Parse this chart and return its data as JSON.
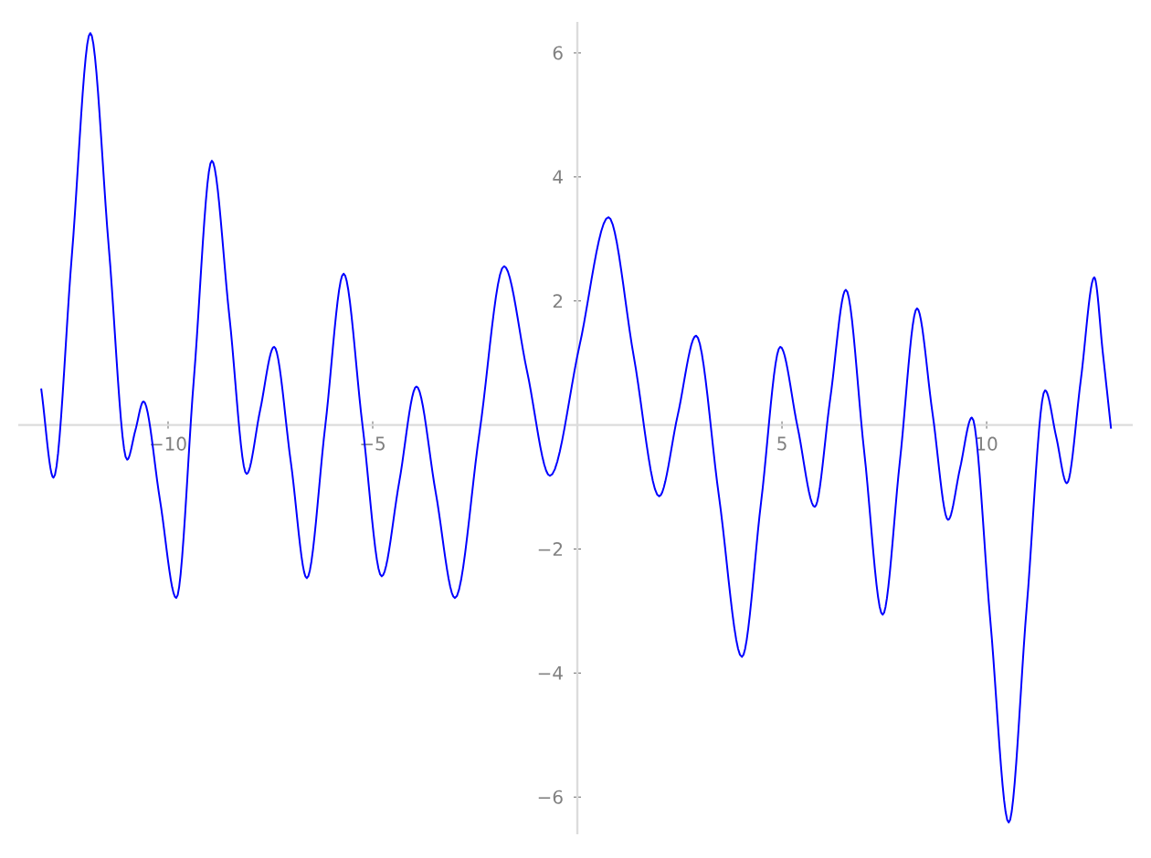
{
  "chart_data": {
    "type": "line",
    "x": [
      -13.1,
      -12.8,
      -12.35,
      -11.9,
      -11.45,
      -11.0,
      -10.8,
      -10.6,
      -10.2,
      -9.8,
      -9.37,
      -8.93,
      -8.5,
      -8.08,
      -7.75,
      -7.41,
      -7.0,
      -6.61,
      -6.16,
      -5.71,
      -5.25,
      -4.78,
      -4.35,
      -3.93,
      -3.46,
      -2.99,
      -2.39,
      -1.79,
      -1.23,
      -0.67,
      0.05,
      0.76,
      1.38,
      2.0,
      2.45,
      2.9,
      3.46,
      4.02,
      4.49,
      4.96,
      5.38,
      5.8,
      6.18,
      6.56,
      7.01,
      7.46,
      7.88,
      8.3,
      8.68,
      9.06,
      9.35,
      9.64,
      10.09,
      10.54,
      10.98,
      11.43,
      11.7,
      11.96,
      12.3,
      12.63,
      12.84,
      13.04
    ],
    "series": [
      {
        "color": "#0000ff",
        "values": [
          0.59,
          -0.85,
          2.74,
          6.32,
          2.88,
          -0.56,
          -0.09,
          0.38,
          -1.2,
          -2.79,
          0.74,
          4.26,
          1.74,
          -0.79,
          0.24,
          1.26,
          -0.6,
          -2.47,
          -0.02,
          2.44,
          0,
          -2.44,
          -0.91,
          0.62,
          -1.09,
          -2.79,
          -0.12,
          2.56,
          0.87,
          -0.82,
          1.27,
          3.35,
          1.1,
          -1.15,
          0.15,
          1.44,
          -1.15,
          -3.74,
          -1.24,
          1.26,
          -0.03,
          -1.32,
          0.43,
          2.18,
          -0.44,
          -3.06,
          -0.59,
          1.88,
          0.18,
          -1.53,
          -0.7,
          0.12,
          -3.15,
          -6.41,
          -2.93,
          0.56,
          -0.19,
          -0.94,
          0.72,
          2.38,
          1.16,
          -0.06
        ]
      }
    ],
    "xlim": [
      -13.66,
      13.57
    ],
    "ylim": [
      -6.6,
      6.5
    ],
    "xticks": [
      {
        "value": -10,
        "label": "−10"
      },
      {
        "value": -5,
        "label": "−5"
      },
      5,
      10
    ],
    "yticks": [
      {
        "value": -6,
        "label": "−6"
      },
      {
        "value": -4,
        "label": "−4"
      },
      {
        "value": -2,
        "label": "−2"
      },
      2,
      4,
      6
    ],
    "grid": false,
    "marker": "none",
    "line_style": "solid"
  }
}
